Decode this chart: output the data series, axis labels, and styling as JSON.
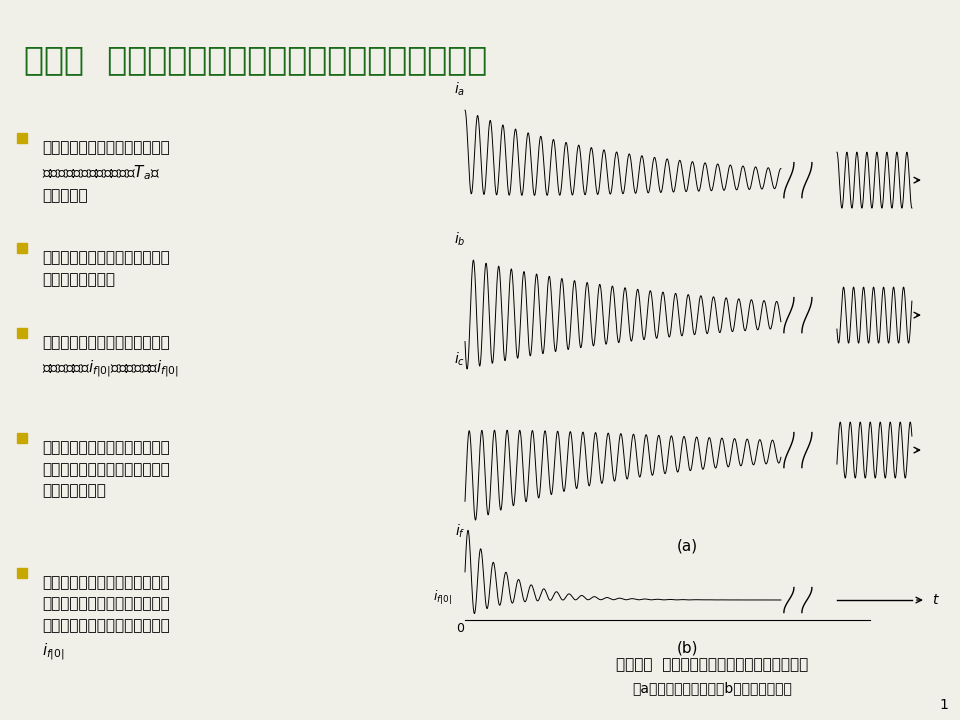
{
  "title": "第一节  空载下定子端部突然三相短路电流波形分析",
  "title_color": "#1a6b1a",
  "title_fontsize": 24,
  "bg_color": "#f0f0e8",
  "header_line_color": "#c8a800",
  "bullet_color": "#c8a800",
  "text_color": "#000000",
  "wave_color": "#000000",
  "page_number": "1",
  "bullet_texts": [
    "定子短路电流含直流分量，按指\n数规律衰减，衰减时间常数$T_a$约\n为零点几秒",
    "定子短路电流中周期分量的幅值\n也呈指数规律衰减",
    "转子绕组的直流分量在短路后瞬\n间大于正常值$i_{f|0|}$，最后衰减至$i_{f|0|}$",
    "转子绕组中出现了交流分量，最\n后衰减至零，衰减时间常数与定\n子直流分量相同",
    "定子和转子回路电流在突然短路\n瞬间均不突变，即定子短路电流\n初值为零，转子励磁回路电流为\n$i_{f|0|}$"
  ],
  "caption_line1": "图２－１  同步发电机三相短路后实测电流波形",
  "caption_line2": "（a）三相定子电流；（b）励磁回路电流"
}
